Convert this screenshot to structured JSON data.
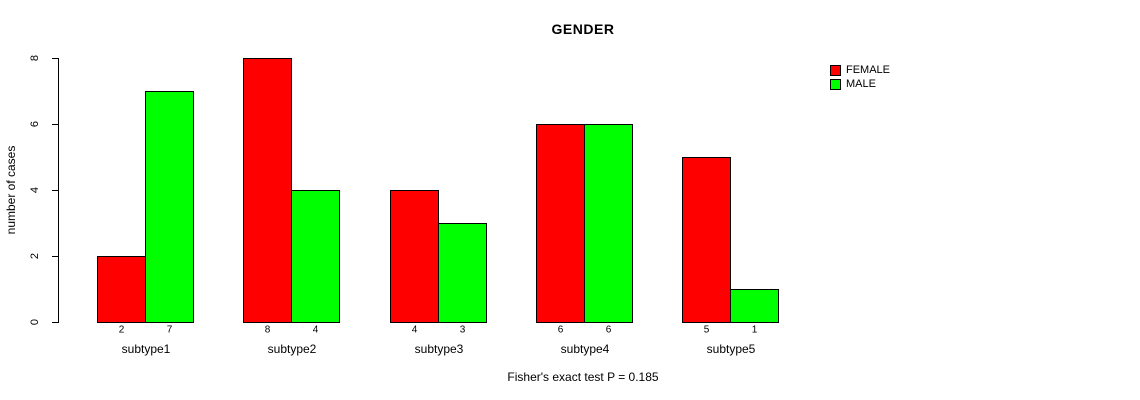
{
  "chart_data": {
    "type": "bar",
    "title": "GENDER",
    "ylabel": "number of cases",
    "xlabel": "",
    "caption": "Fisher's exact test P = 0.185",
    "categories": [
      "subtype1",
      "subtype2",
      "subtype3",
      "subtype4",
      "subtype5"
    ],
    "series": [
      {
        "name": "FEMALE",
        "color": "#FF0000",
        "values": [
          2,
          8,
          4,
          6,
          5
        ]
      },
      {
        "name": "MALE",
        "color": "#00FF00",
        "values": [
          7,
          4,
          3,
          6,
          1
        ]
      }
    ],
    "bar_value_labels_shown": true,
    "yticks": [
      0,
      2,
      4,
      6,
      8
    ],
    "ylim": [
      0,
      8
    ],
    "grid": false,
    "legend_position": "top-right",
    "background_color": "#FFFFFF",
    "axis_color": "#000000"
  }
}
